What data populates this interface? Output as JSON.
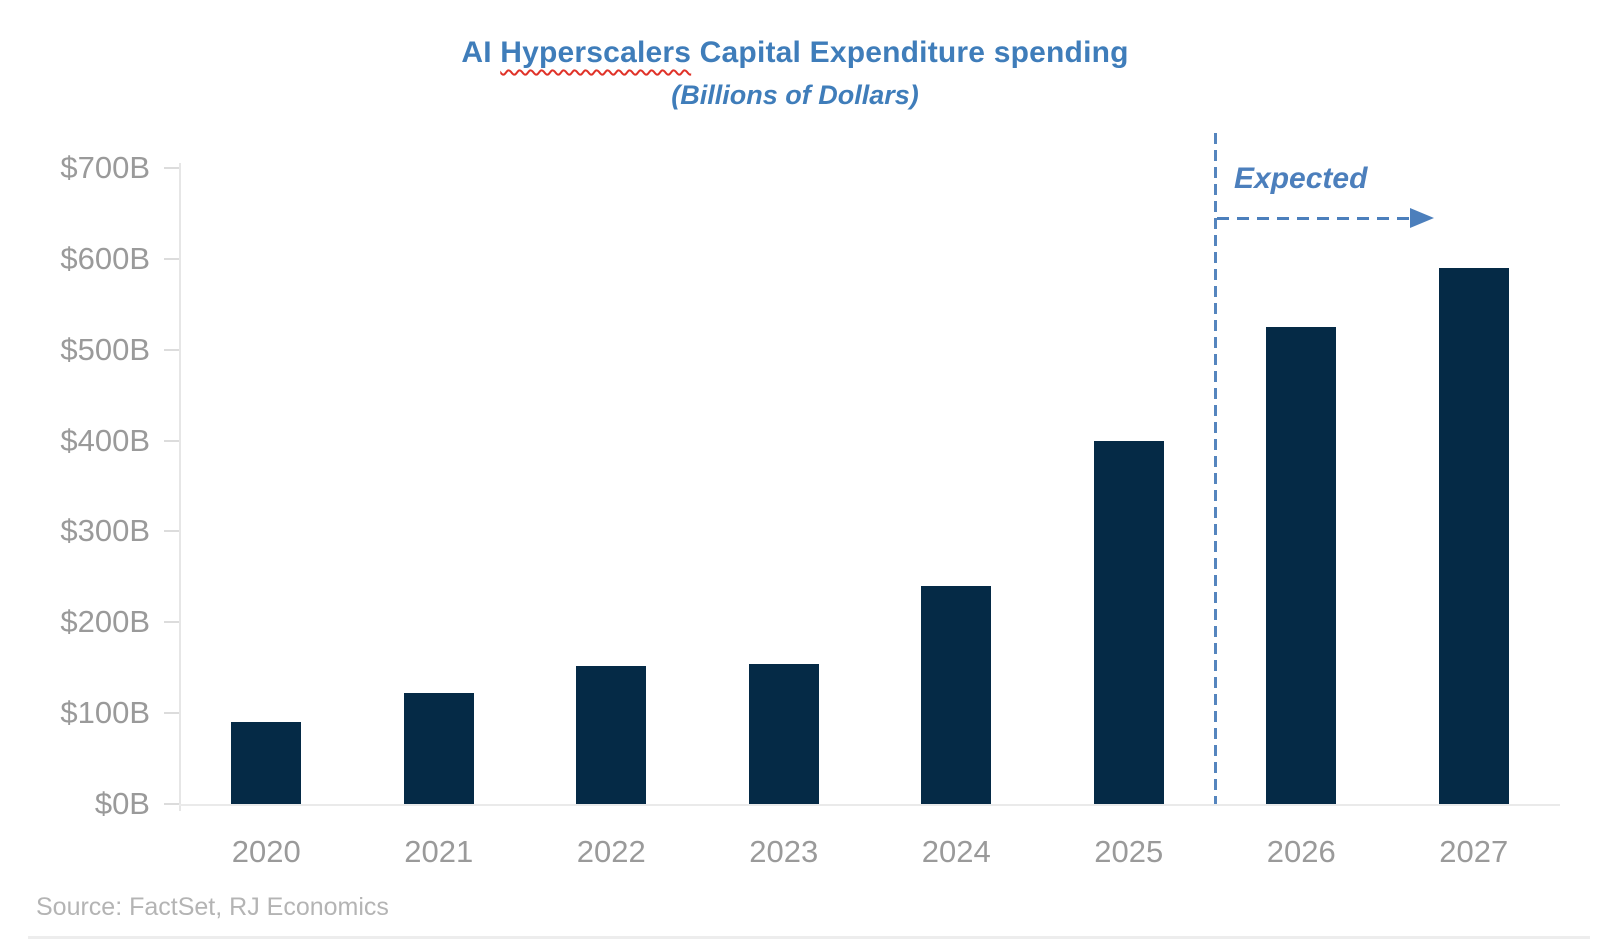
{
  "page": {
    "background": "#FFFFFF"
  },
  "chart_data": {
    "type": "bar",
    "title": "AI Hyperscalers Capital Expenditure spending",
    "title_parts": {
      "pre": "AI ",
      "flagged": "Hyperscalers",
      "post": " Capital Expenditure spending"
    },
    "subtitle": "(Billions of Dollars)",
    "categories": [
      "2020",
      "2021",
      "2022",
      "2023",
      "2024",
      "2025",
      "2026",
      "2027"
    ],
    "values": [
      90,
      122,
      152,
      154,
      240,
      400,
      525,
      590
    ],
    "series_name": "AI hyperscaler capital expenditure ($B)",
    "xlabel": "",
    "ylabel": "Billions of Dollars",
    "ylim": [
      0,
      700
    ],
    "ytick_interval": 100,
    "ytick_labels_top_to_bottom": [
      "$700B",
      "$600B",
      "$500B",
      "$400B",
      "$300B",
      "$200B",
      "$100B",
      "$0B"
    ],
    "grid": "off",
    "legend_position": "none",
    "annotation": {
      "label": "Expected",
      "from_category": "2026",
      "style": "dashed-vertical-line-with-right-arrow"
    },
    "source": "Source: FactSet, RJ Economics",
    "colors": {
      "bar": "#052A46",
      "title": "#3F7DBA",
      "annotation": "#4C7FBC",
      "axis_labels": "#9A9A9A",
      "source_text": "#B4B4B4",
      "axis_line": "#E6E6E6",
      "spellcheck_squiggle": "#E03228"
    }
  }
}
